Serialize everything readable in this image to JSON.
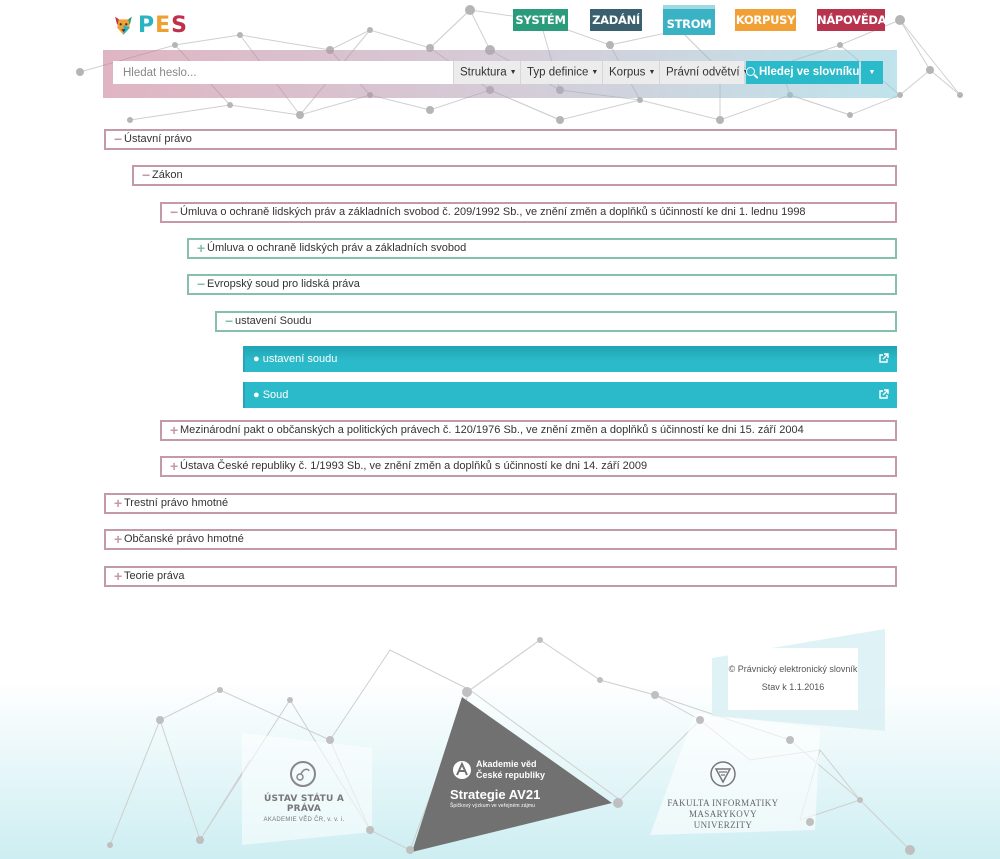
{
  "logo": {
    "text_p": "P",
    "text_e": "E",
    "text_s": "S"
  },
  "nav": {
    "system": "SYSTÉM",
    "zadani": "ZADÁNÍ",
    "strom": "STROM",
    "korpusy": "KORPUSY",
    "napoveda": "NÁPOVĚDA"
  },
  "search": {
    "placeholder": "Hledat heslo...",
    "filters": [
      "Struktura",
      "Typ definice",
      "Korpus",
      "Právní odvětví"
    ],
    "button": "Hledej ve slovníku"
  },
  "tree": [
    {
      "label": "Ústavní právo",
      "state": "expanded",
      "level": 0
    },
    {
      "label": "Zákon",
      "state": "expanded",
      "level": 1
    },
    {
      "label": "Úmluva o ochraně lidských práv a základních svobod č. 209/1992 Sb., ve znění změn a doplňků s účinností ke dni 1. lednu 1998",
      "state": "expanded",
      "level": 2
    },
    {
      "label": "Úmluva o ochraně lidských práv a základních svobod",
      "state": "collapsed",
      "level": 3
    },
    {
      "label": "Evropský soud pro lidská práva",
      "state": "expanded",
      "level": 3
    },
    {
      "label": "ustavení Soudu",
      "state": "expanded",
      "level": 4
    },
    {
      "label": "ustavení soudu",
      "state": "leaf",
      "level": 5
    },
    {
      "label": "Soud",
      "state": "leaf",
      "level": 5
    },
    {
      "label": "Mezinárodní pakt o občanských a politických právech č. 120/1976 Sb., ve znění změn a doplňků s účinností ke dni 15. září 2004",
      "state": "collapsed",
      "level": 2
    },
    {
      "label": "Ústava České republiky č. 1/1993 Sb., ve znění změn a doplňků s účinností ke dni 14. září 2009",
      "state": "collapsed",
      "level": 2
    },
    {
      "label": "Trestní právo hmotné",
      "state": "collapsed",
      "level": 0
    },
    {
      "label": "Občanské právo hmotné",
      "state": "collapsed",
      "level": 0
    },
    {
      "label": "Teorie práva",
      "state": "collapsed",
      "level": 0
    }
  ],
  "footer": {
    "copyright": "© Právnický elektronický slovník",
    "status": "Stav k 1.1.2016",
    "ustav_title": "ÚSTAV STÁTU A PRÁVA",
    "ustav_sub": "AKADEMIE VĚD ČR, v. v. i.",
    "av_line1": "Akademie věd",
    "av_line2": "České republiky",
    "av_strategy": "Strategie AV21",
    "av_tagline": "Špičkový výzkum ve veřejném zájmu",
    "fi_line1": "FAKULTA INFORMATIKY",
    "fi_line2": "MASARYKOVY UNIVERZITY"
  },
  "colors": {
    "nav_system": "#2a9c7c",
    "nav_zadani": "#3a5f6f",
    "nav_strom": "#3ab2c4",
    "nav_korpusy": "#f0a035",
    "nav_napoveda": "#b8344e",
    "tree_pink": "#c49aab",
    "tree_green": "#86c0aa",
    "leaf": "#2bbac9"
  }
}
